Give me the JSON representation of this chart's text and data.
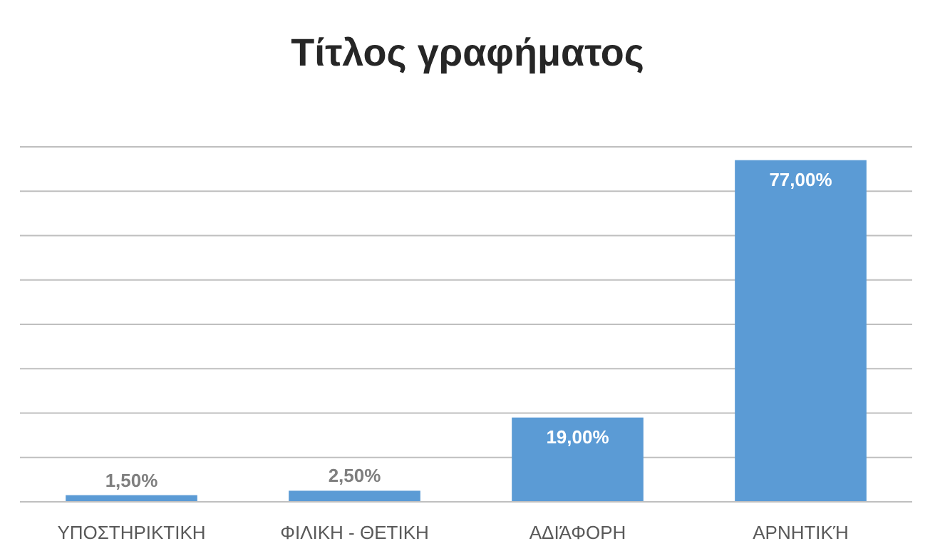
{
  "chart_data": {
    "type": "bar",
    "title": "Τίτλος γραφήματος",
    "categories": [
      "ΥΠΟΣΤΗΡΙΚΤΙΚΗ",
      "ΦΙΛΙΚΗ -  ΘΕΤΙΚΗ",
      "ΑΔΙΆΦΟΡΗ",
      "ΑΡΝΗΤΙΚΉ"
    ],
    "values": [
      1.5,
      2.5,
      19,
      77
    ],
    "value_labels": [
      "1,50%",
      "2,50%",
      "19,00%",
      "77,00%"
    ],
    "color": "#5b9bd5",
    "ylim": [
      0,
      80
    ],
    "yticks": [
      {
        "value": 0,
        "label": null
      },
      {
        "value": 10,
        "label": null
      },
      {
        "value": 20,
        "label": null
      },
      {
        "value": 30,
        "label": null
      },
      {
        "value": 40,
        "label": null
      },
      {
        "value": 50,
        "label": null
      },
      {
        "value": 60,
        "label": null
      },
      {
        "value": 70,
        "label": null
      },
      {
        "value": 80,
        "label": null
      }
    ],
    "grid": "y",
    "tick_labels": "x"
  }
}
